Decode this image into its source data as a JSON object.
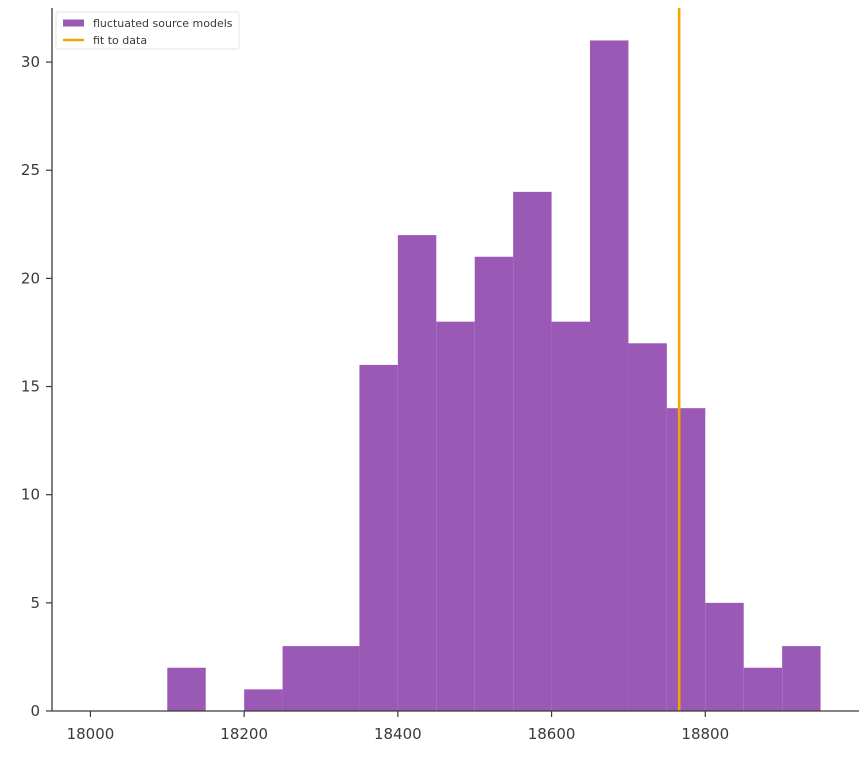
{
  "chart_data": {
    "type": "bar",
    "title": "",
    "xlabel": "",
    "ylabel": "",
    "bin_width": 50,
    "bins": [
      {
        "x0": 18100,
        "x1": 18150,
        "count": 2
      },
      {
        "x0": 18200,
        "x1": 18250,
        "count": 1
      },
      {
        "x0": 18250,
        "x1": 18300,
        "count": 3
      },
      {
        "x0": 18300,
        "x1": 18350,
        "count": 3
      },
      {
        "x0": 18350,
        "x1": 18400,
        "count": 16
      },
      {
        "x0": 18400,
        "x1": 18450,
        "count": 22
      },
      {
        "x0": 18450,
        "x1": 18500,
        "count": 18
      },
      {
        "x0": 18500,
        "x1": 18550,
        "count": 21
      },
      {
        "x0": 18550,
        "x1": 18600,
        "count": 24
      },
      {
        "x0": 18600,
        "x1": 18650,
        "count": 18
      },
      {
        "x0": 18650,
        "x1": 18700,
        "count": 31
      },
      {
        "x0": 18700,
        "x1": 18750,
        "count": 17
      },
      {
        "x0": 18750,
        "x1": 18800,
        "count": 14
      },
      {
        "x0": 18800,
        "x1": 18850,
        "count": 5
      },
      {
        "x0": 18850,
        "x1": 18900,
        "count": 2
      },
      {
        "x0": 18900,
        "x1": 18950,
        "count": 3
      }
    ],
    "fit_value": 18766,
    "xlim": [
      17950,
      19000
    ],
    "ylim": [
      0,
      32.5
    ],
    "xticks": [
      18000,
      18200,
      18400,
      18600,
      18800
    ],
    "yticks": [
      0,
      5,
      10,
      15,
      20,
      25,
      30
    ],
    "grid": false,
    "legend_position": "top-left",
    "legend": [
      {
        "label": "fluctuated source models",
        "kind": "patch",
        "color": "#9a59b5"
      },
      {
        "label": "fit to data",
        "kind": "line",
        "color": "#f5a300"
      }
    ],
    "colors": {
      "bars": "#9a59b5",
      "fit_line": "#f5a300",
      "axis": "#3a3a3a"
    }
  }
}
